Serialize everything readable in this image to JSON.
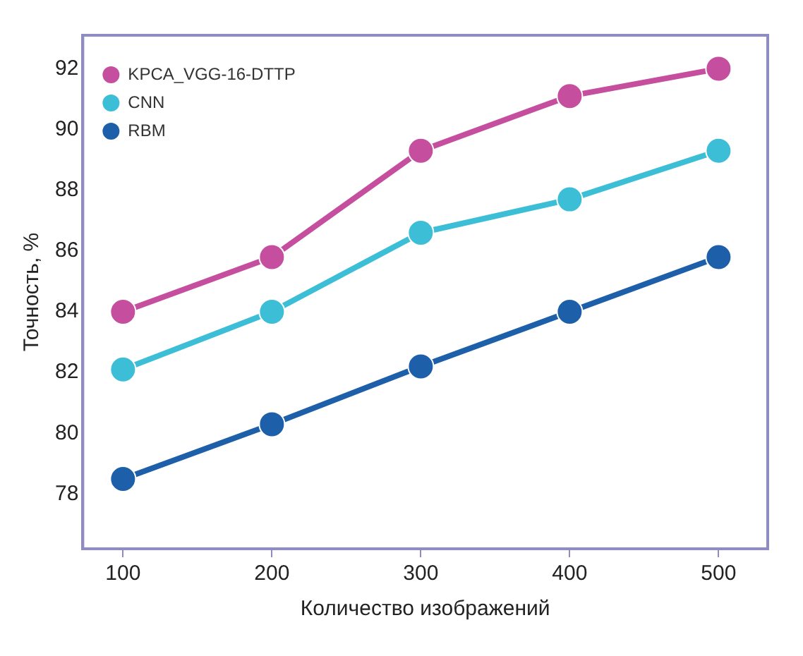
{
  "chart_data": {
    "type": "line",
    "xlabel": "Количество изображений",
    "ylabel": "Точность, %",
    "x": [
      100,
      200,
      300,
      400,
      500
    ],
    "series": [
      {
        "name": "KPCA_VGG-16-DTTP",
        "color": "#c54f9e",
        "values": [
          84.0,
          85.8,
          89.3,
          91.1,
          92.0
        ]
      },
      {
        "name": "CNN",
        "color": "#3cbfd6",
        "values": [
          82.1,
          84.0,
          86.6,
          87.7,
          89.3
        ]
      },
      {
        "name": "RBM",
        "color": "#1d5fa8",
        "values": [
          78.5,
          80.3,
          82.2,
          84.0,
          85.8
        ]
      }
    ],
    "xlim": [
      73,
      533
    ],
    "xticks": [
      100,
      200,
      300,
      400,
      500
    ],
    "ylim": [
      76.2,
      93.1
    ],
    "yticks": [
      78,
      80,
      82,
      84,
      86,
      88,
      90,
      92
    ],
    "grid": false,
    "legend": "top left",
    "marker": "circle",
    "line_style": "solid"
  }
}
